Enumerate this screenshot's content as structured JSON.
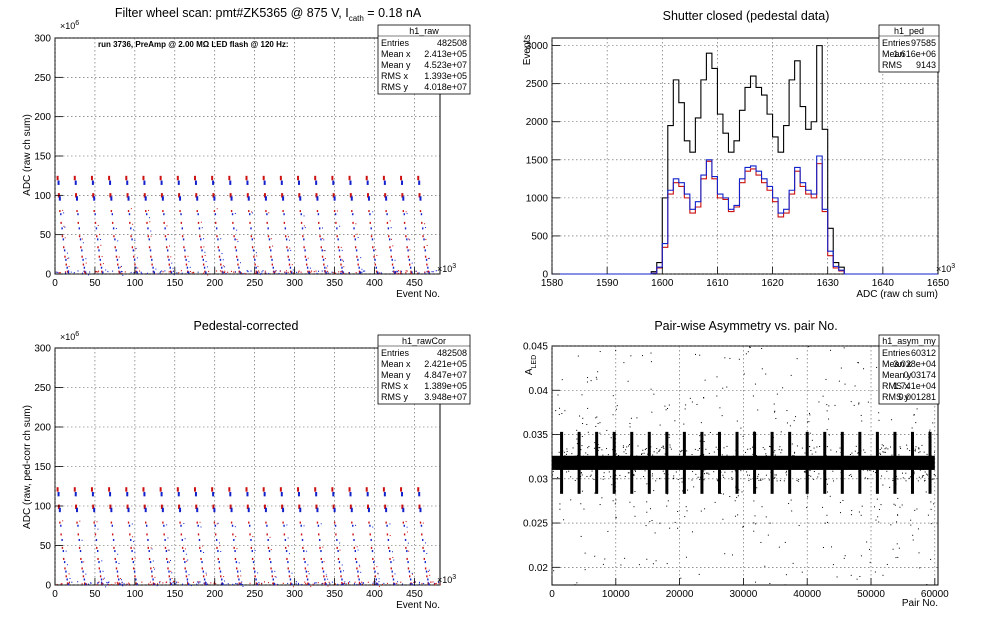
{
  "colors": {
    "red": "#cc1111",
    "blue": "#1122cc",
    "black": "#000000",
    "frame": "#000000"
  },
  "panels": [
    {
      "title_main": "Filter wheel scan: pmt#ZK5365 @   875 V, I",
      "title_sub": "cath",
      "title_tail": " = 0.18 nA",
      "ylabel": "ADC (raw ch sum)",
      "xlabel": "Event No.",
      "y_exponent_base": "×10",
      "y_exponent_power": "6",
      "x_exponent_base": "×10",
      "x_exponent_power": "3",
      "note": "run 3736, PreAmp @ 2.00 MΩ LED flash @  120 Hz:",
      "stats_name": "h1_raw",
      "stats": [
        {
          "label": "Entries",
          "value": "482508"
        },
        {
          "label": "Mean x",
          "value": "2.413e+05"
        },
        {
          "label": "Mean y",
          "value": "4.523e+07"
        },
        {
          "label": "RMS x",
          "value": "1.393e+05"
        },
        {
          "label": "RMS y",
          "value": "4.018e+07"
        }
      ]
    },
    {
      "title_main": "Shutter closed (pedestal data)",
      "ylabel": "Events",
      "xlabel": "ADC (raw ch sum)",
      "x_exponent_base": "×10",
      "x_exponent_power": "3",
      "stats_name": "h1_ped",
      "stats": [
        {
          "label": "Entries",
          "value": "97585"
        },
        {
          "label": "Mean",
          "value": "1.616e+06"
        },
        {
          "label": "RMS",
          "value": "9143"
        }
      ]
    },
    {
      "title_main": "Pedestal-corrected",
      "ylabel": "ADC (raw, ped-corr ch sum)",
      "xlabel": "Event No.",
      "y_exponent_base": "×10",
      "y_exponent_power": "6",
      "x_exponent_base": "×10",
      "x_exponent_power": "3",
      "stats_name": "h1_rawCor",
      "stats": [
        {
          "label": "Entries",
          "value": "482508"
        },
        {
          "label": "Mean x",
          "value": "2.421e+05"
        },
        {
          "label": "Mean y",
          "value": "4.847e+07"
        },
        {
          "label": "RMS x",
          "value": "1.389e+05"
        },
        {
          "label": "RMS y",
          "value": "3.948e+07"
        }
      ]
    },
    {
      "title_main": "Pair-wise Asymmetry vs. pair No.",
      "ylabel_main": "A",
      "ylabel_sub": "LED",
      "xlabel": "Pair No.",
      "stats_name": "h1_asym_my",
      "stats": [
        {
          "label": "Entries",
          "value": "60312"
        },
        {
          "label": "Mean x",
          "value": "3.028e+04"
        },
        {
          "label": "Mean y",
          "value": "0.03174"
        },
        {
          "label": "RMS x",
          "value": "1.741e+04"
        },
        {
          "label": "RMS y",
          "value": "0.001281"
        }
      ]
    }
  ],
  "chart_data": [
    {
      "type": "scatter",
      "title": "Filter wheel scan: pmt#ZK5365 @   875 V, I cath = 0.18 nA",
      "xlabel": "Event No.",
      "ylabel": "ADC (raw ch sum)",
      "x_scale": "×10^3",
      "y_scale": "×10^6",
      "xlim": [
        0,
        482
      ],
      "ylim": [
        0,
        300
      ],
      "xticks": [
        0,
        50,
        100,
        150,
        200,
        250,
        300,
        350,
        400,
        450
      ],
      "yticks": [
        0,
        50,
        100,
        150,
        200,
        250,
        300
      ],
      "grid": true,
      "series": [
        {
          "color": "red",
          "levels": [
            122,
            100,
            80,
            65,
            48,
            34,
            22,
            12,
            3
          ]
        },
        {
          "color": "blue",
          "levels": [
            116,
            96,
            76,
            58,
            44,
            30,
            18,
            8,
            2
          ]
        }
      ],
      "sweep_period": 21.5,
      "sweep_count": 22
    },
    {
      "type": "line",
      "title": "Shutter closed (pedestal data)",
      "xlabel": "ADC (raw ch sum)",
      "ylabel": "Events",
      "x_scale": "×10^3",
      "xlim": [
        1580,
        1650
      ],
      "ylim": [
        0,
        3100
      ],
      "xticks": [
        1580,
        1590,
        1600,
        1610,
        1620,
        1630,
        1640,
        1650
      ],
      "yticks": [
        0,
        500,
        1000,
        1500,
        2000,
        2500,
        3000
      ],
      "grid": true,
      "bin_start": 1598,
      "bin_width": 1,
      "series": [
        {
          "color": "black",
          "values": [
            30,
            150,
            1000,
            1950,
            2550,
            2250,
            1750,
            1600,
            2050,
            2550,
            2900,
            2700,
            2100,
            1850,
            1600,
            1750,
            2150,
            2450,
            2600,
            2450,
            2350,
            2100,
            1800,
            1600,
            1950,
            2550,
            2800,
            2200,
            1900,
            2000,
            3000,
            1900,
            600,
            150,
            90
          ]
        },
        {
          "color": "red",
          "values": [
            10,
            80,
            350,
            1050,
            1200,
            1150,
            1000,
            800,
            880,
            1250,
            1480,
            1250,
            1000,
            980,
            820,
            880,
            1200,
            1350,
            1380,
            1300,
            1200,
            1100,
            950,
            750,
            800,
            1050,
            1350,
            1150,
            1050,
            1000,
            1450,
            820,
            240,
            80,
            40
          ]
        },
        {
          "color": "blue",
          "values": [
            10,
            90,
            400,
            1100,
            1250,
            1200,
            1050,
            850,
            950,
            1300,
            1500,
            1280,
            1050,
            1000,
            850,
            900,
            1250,
            1400,
            1420,
            1350,
            1250,
            1150,
            1000,
            800,
            850,
            1100,
            1400,
            1200,
            1100,
            1050,
            1550,
            850,
            300,
            100,
            50
          ]
        }
      ]
    },
    {
      "type": "scatter",
      "title": "Pedestal-corrected",
      "xlabel": "Event No.",
      "ylabel": "ADC (raw, ped-corr ch sum)",
      "x_scale": "×10^3",
      "y_scale": "×10^6",
      "xlim": [
        0,
        482
      ],
      "ylim": [
        0,
        300
      ],
      "xticks": [
        0,
        50,
        100,
        150,
        200,
        250,
        300,
        350,
        400,
        450
      ],
      "yticks": [
        0,
        50,
        100,
        150,
        200,
        250,
        300
      ],
      "grid": true,
      "series": [
        {
          "color": "red",
          "levels": [
            121,
            99,
            79,
            64,
            47,
            33,
            21,
            11,
            2
          ]
        },
        {
          "color": "blue",
          "levels": [
            115,
            95,
            75,
            57,
            43,
            29,
            17,
            7,
            1
          ]
        }
      ],
      "sweep_period": 21.5,
      "sweep_count": 22
    },
    {
      "type": "scatter",
      "title": "Pair-wise Asymmetry vs. pair No.",
      "xlabel": "Pair No.",
      "ylabel": "A LED",
      "xlim": [
        0,
        60500
      ],
      "ylim": [
        0.018,
        0.045
      ],
      "xticks": [
        0,
        10000,
        20000,
        30000,
        40000,
        50000,
        60000
      ],
      "yticks": [
        0.02,
        0.025,
        0.03,
        0.035,
        0.04,
        0.045
      ],
      "grid": true,
      "series": [
        {
          "color": "black",
          "center": 0.0318,
          "band_halfwidth": 0.0008
        }
      ],
      "burst_period": 2750
    }
  ]
}
